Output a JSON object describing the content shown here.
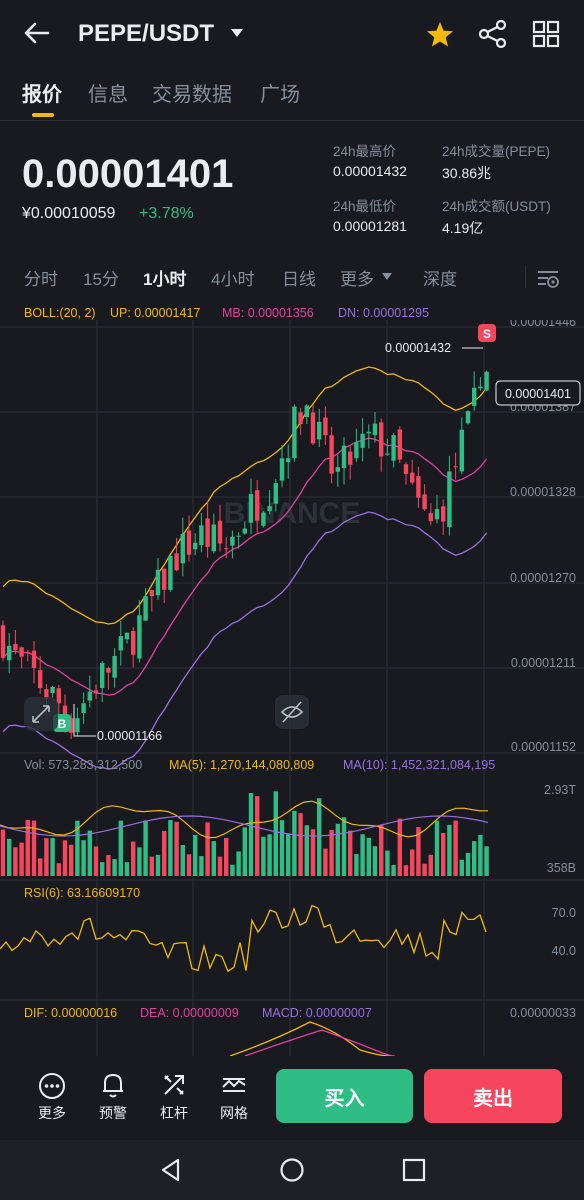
{
  "header": {
    "pair": "PEPE/USDT",
    "back_icon": "arrow-left-icon",
    "favorite_icon": "star-icon",
    "share_icon": "share-icon",
    "grid_icon": "grid-icon",
    "favorite_color": "#f0b90b"
  },
  "tabs": [
    "报价",
    "信息",
    "交易数据",
    "广场"
  ],
  "ticker": {
    "last_price": "0.00001401",
    "cny_price": "¥0.00010059",
    "change": "+3.78%",
    "high_label": "24h最高价",
    "high": "0.00001432",
    "vol_label": "24h成交量(PEPE)",
    "vol": "30.86兆",
    "low_label": "24h最低价",
    "low": "0.00001281",
    "amount_label": "24h成交额(USDT)",
    "amount": "4.19亿"
  },
  "timeframes": [
    "分时",
    "15分",
    "1小时",
    "4小时",
    "日线",
    "更多",
    "深度"
  ],
  "chart": {
    "boll": "BOLL:(20, 2)",
    "boll_up": "UP: 0.00001417",
    "boll_mb": "MB: 0.00001356",
    "boll_dn": "DN: 0.00001295",
    "y_labels": [
      "0.00001446",
      "0.00001387",
      "0.00001328",
      "0.00001270",
      "0.00001211",
      "0.00001152"
    ],
    "current_price": "0.00001401",
    "high_marker": "0.00001432",
    "low_marker": "0.00001166",
    "sell_marker": "S",
    "buy_marker": "B",
    "watermark": "BINANCE",
    "volume_label": "Vol: 573,283,312,500",
    "ma5_label": "MA(5): 1,270,144,080,809",
    "ma10_label": "MA(10): 1,452,321,084,195",
    "vol_top": "2.93T",
    "vol_bottom": "358B",
    "rsi_label": "RSI(6): 63.16609170",
    "rsi_70": "70.0",
    "rsi_40": "40.0",
    "dif_label": "DIF: 0.00000016",
    "dea_label": "DEA: 0.00000009",
    "macd_label": "MACD: 0.00000007",
    "macd_axis": "0.00000033",
    "colors": {
      "up": "#2ebd85",
      "down": "#f6465d",
      "boll_up": "#f0b90b",
      "boll_mb": "#e040a0",
      "boll_dn": "#9a6fe0"
    }
  },
  "bottom": {
    "more": "更多",
    "alert": "预警",
    "leverage": "杠杆",
    "grid": "网格",
    "buy": "买入",
    "sell": "卖出",
    "buy_color": "#2ebd85",
    "sell_color": "#f6465d"
  }
}
